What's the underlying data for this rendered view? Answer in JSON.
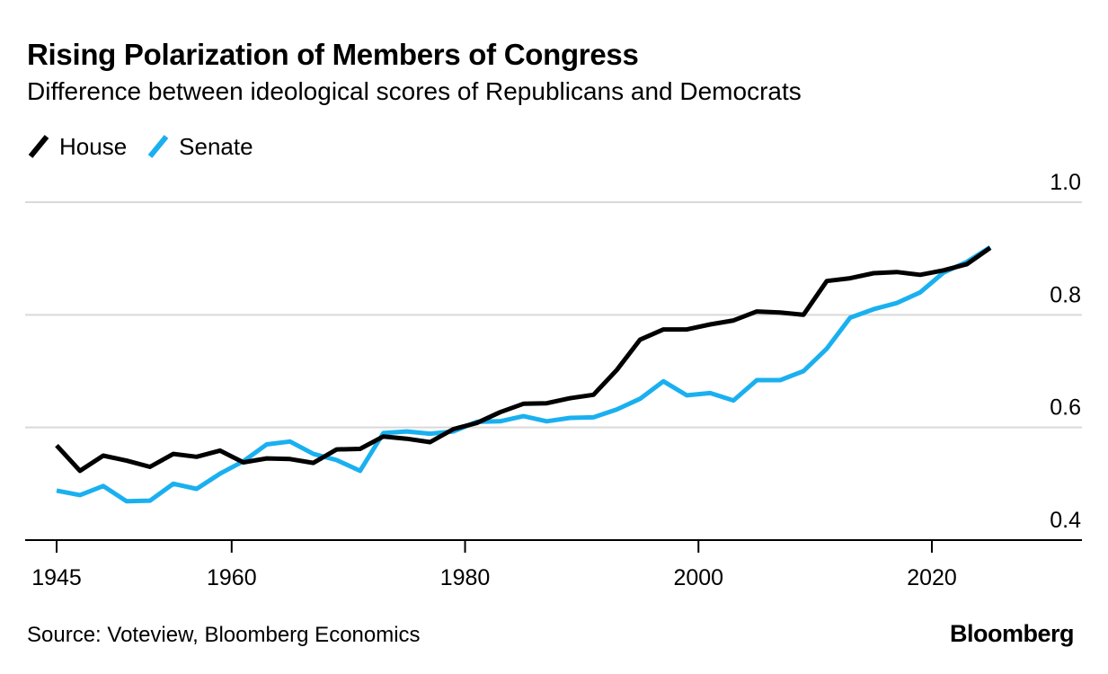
{
  "header": {
    "title": "Rising Polarization of Members of Congress",
    "subtitle": "Difference between ideological scores of Republicans and Democrats"
  },
  "footer": {
    "source": "Source: Voteview, Bloomberg Economics",
    "brand": "Bloomberg"
  },
  "colors": {
    "house": "#000000",
    "senate": "#1ab0f0",
    "grid": "#d9d9d9",
    "axis": "#000000"
  },
  "chart_data": {
    "type": "line",
    "title": "Rising Polarization of Members of Congress",
    "subtitle": "Difference between ideological scores of Republicans and Democrats",
    "xlabel": "",
    "ylabel": "",
    "xlim": [
      1942,
      2033
    ],
    "ylim": [
      0.4,
      1.0
    ],
    "xticks": [
      1945,
      1960,
      1980,
      2000,
      2020
    ],
    "yticks": [
      0.4,
      0.6,
      0.8,
      1.0
    ],
    "y_axis_side": "right",
    "grid": "horizontal",
    "legend_position": "top-left",
    "series": [
      {
        "name": "House",
        "color": "#000000",
        "x": [
          1945,
          1947,
          1949,
          1951,
          1953,
          1955,
          1957,
          1959,
          1961,
          1963,
          1965,
          1967,
          1969,
          1971,
          1973,
          1975,
          1977,
          1979,
          1981,
          1983,
          1985,
          1987,
          1989,
          1991,
          1993,
          1995,
          1997,
          1999,
          2001,
          2003,
          2005,
          2007,
          2009,
          2011,
          2013,
          2015,
          2017,
          2019,
          2021,
          2023,
          2025
        ],
        "y": [
          0.568,
          0.523,
          0.55,
          0.541,
          0.53,
          0.553,
          0.548,
          0.559,
          0.538,
          0.545,
          0.544,
          0.537,
          0.561,
          0.562,
          0.584,
          0.58,
          0.574,
          0.597,
          0.608,
          0.627,
          0.642,
          0.643,
          0.652,
          0.658,
          0.702,
          0.756,
          0.774,
          0.774,
          0.783,
          0.79,
          0.806,
          0.804,
          0.8,
          0.86,
          0.865,
          0.874,
          0.876,
          0.871,
          0.879,
          0.89,
          0.919
        ]
      },
      {
        "name": "Senate",
        "color": "#1ab0f0",
        "x": [
          1945,
          1947,
          1949,
          1951,
          1953,
          1955,
          1957,
          1959,
          1961,
          1963,
          1965,
          1967,
          1969,
          1971,
          1973,
          1975,
          1977,
          1979,
          1981,
          1983,
          1985,
          1987,
          1989,
          1991,
          1993,
          1995,
          1997,
          1999,
          2001,
          2003,
          2005,
          2007,
          2009,
          2011,
          2013,
          2015,
          2017,
          2019,
          2021,
          2023,
          2025
        ],
        "y": [
          0.488,
          0.48,
          0.496,
          0.469,
          0.47,
          0.5,
          0.491,
          0.518,
          0.54,
          0.57,
          0.575,
          0.553,
          0.542,
          0.523,
          0.59,
          0.593,
          0.589,
          0.593,
          0.61,
          0.611,
          0.62,
          0.611,
          0.617,
          0.618,
          0.632,
          0.651,
          0.682,
          0.657,
          0.661,
          0.648,
          0.684,
          0.684,
          0.7,
          0.74,
          0.795,
          0.81,
          0.821,
          0.84,
          0.875,
          0.894,
          0.92
        ]
      }
    ]
  }
}
